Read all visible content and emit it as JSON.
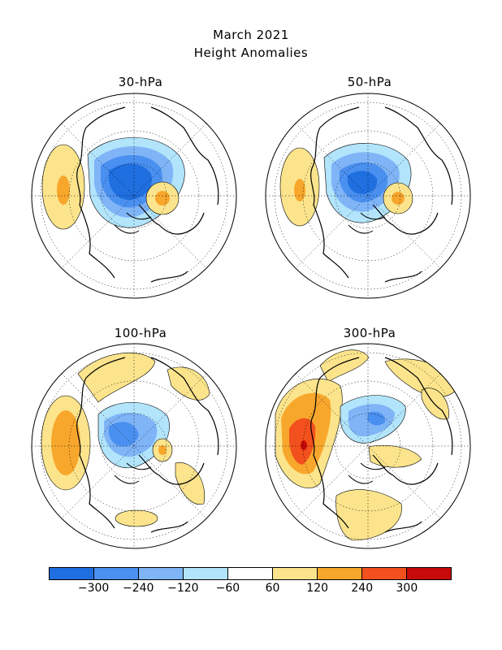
{
  "title_line1": "March 2021",
  "title_line2": "Height Anomalies",
  "panels": [
    {
      "label": "30-hPa"
    },
    {
      "label": "50-hPa"
    },
    {
      "label": "100-hPa"
    },
    {
      "label": "300-hPa"
    }
  ],
  "colorbar": {
    "colors": [
      "#1f6fe0",
      "#4a90f0",
      "#7fb4f7",
      "#b2e4fb",
      "#ffffff",
      "#fbe48c",
      "#f8a72d",
      "#f2501d",
      "#c80a0a"
    ],
    "tick_labels": [
      "-300",
      "-240",
      "-120",
      "-60",
      "60",
      "120",
      "240",
      "300"
    ]
  },
  "palette": {
    "land_line": "#000000",
    "grid_line": "#000000"
  }
}
